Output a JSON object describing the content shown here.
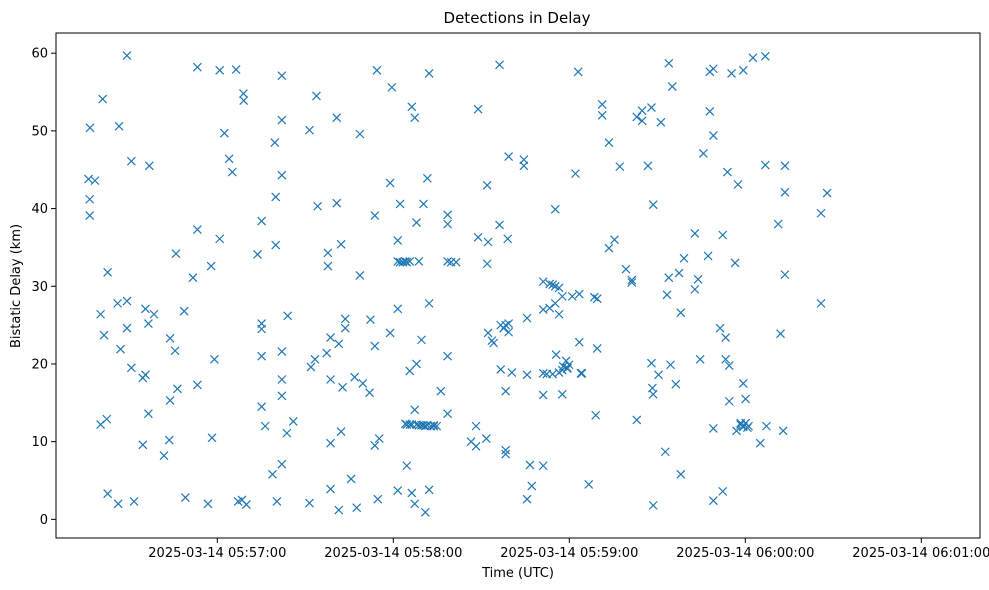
{
  "chart_data": {
    "type": "scatter",
    "title": "Detections in Delay",
    "xlabel": "Time (UTC)",
    "ylabel": "Bistatic Delay (km)",
    "marker": "x",
    "color": "#1f77b4",
    "grid": false,
    "x_unit": "seconds",
    "x_tick_labels": [
      "2025-03-14 05:57:00",
      "2025-03-14 05:58:00",
      "2025-03-14 05:59:00",
      "2025-03-14 06:00:00",
      "2025-03-14 06:01:00"
    ],
    "x_tick_values": [
      60,
      120,
      180,
      240,
      300
    ],
    "xlim": [
      5,
      320
    ],
    "y_ticks": [
      0,
      10,
      20,
      30,
      40,
      50,
      60
    ],
    "ylim": [
      -2.4,
      62.6
    ],
    "points": [
      [
        16.1,
        43.8
      ],
      [
        16.5,
        41.2
      ],
      [
        16.5,
        39.1
      ],
      [
        16.6,
        50.4
      ],
      [
        18.3,
        43.6
      ],
      [
        20.2,
        12.2
      ],
      [
        20.2,
        26.4
      ],
      [
        20.9,
        54.1
      ],
      [
        21.4,
        23.7
      ],
      [
        22.3,
        12.9
      ],
      [
        22.6,
        31.8
      ],
      [
        22.6,
        3.3
      ],
      [
        26.0,
        27.8
      ],
      [
        26.2,
        2.0
      ],
      [
        26.5,
        50.6
      ],
      [
        27.0,
        21.9
      ],
      [
        29.2,
        59.7
      ],
      [
        29.2,
        28.1
      ],
      [
        29.2,
        24.6
      ],
      [
        30.7,
        19.5
      ],
      [
        30.7,
        46.1
      ],
      [
        31.6,
        2.3
      ],
      [
        34.6,
        9.6
      ],
      [
        34.6,
        18.2
      ],
      [
        35.5,
        18.6
      ],
      [
        35.5,
        27.1
      ],
      [
        36.5,
        25.2
      ],
      [
        36.5,
        13.6
      ],
      [
        36.8,
        45.5
      ],
      [
        38.4,
        26.4
      ],
      [
        41.8,
        8.2
      ],
      [
        43.6,
        10.2
      ],
      [
        43.9,
        15.3
      ],
      [
        43.9,
        23.3
      ],
      [
        45.6,
        21.7
      ],
      [
        45.9,
        34.2
      ],
      [
        46.4,
        16.8
      ],
      [
        48.7,
        26.8
      ],
      [
        49.1,
        2.8
      ],
      [
        51.7,
        31.1
      ],
      [
        53.2,
        17.3
      ],
      [
        53.2,
        37.3
      ],
      [
        53.2,
        58.2
      ],
      [
        56.8,
        2.0
      ],
      [
        57.9,
        32.6
      ],
      [
        58.2,
        10.5
      ],
      [
        59.0,
        20.6
      ],
      [
        60.8,
        57.8
      ],
      [
        60.8,
        36.1
      ],
      [
        62.4,
        49.7
      ],
      [
        64.0,
        46.4
      ],
      [
        65.1,
        44.7
      ],
      [
        66.4,
        57.9
      ],
      [
        67.1,
        2.3
      ],
      [
        68.4,
        2.5
      ],
      [
        68.9,
        54.8
      ],
      [
        69.0,
        53.9
      ],
      [
        69.9,
        1.9
      ],
      [
        73.7,
        34.1
      ],
      [
        75.1,
        38.4
      ],
      [
        75.1,
        25.2
      ],
      [
        75.1,
        24.5
      ],
      [
        75.1,
        21.0
      ],
      [
        75.1,
        14.5
      ],
      [
        76.3,
        12.0
      ],
      [
        78.8,
        5.8
      ],
      [
        79.6,
        48.5
      ],
      [
        79.9,
        35.3
      ],
      [
        79.9,
        41.5
      ],
      [
        80.3,
        2.3
      ],
      [
        82.0,
        57.1
      ],
      [
        82.0,
        51.4
      ],
      [
        82.0,
        44.3
      ],
      [
        82.0,
        21.6
      ],
      [
        82.0,
        18.0
      ],
      [
        82.0,
        15.9
      ],
      [
        82.0,
        7.1
      ],
      [
        83.7,
        11.1
      ],
      [
        84.0,
        26.2
      ],
      [
        85.9,
        12.6
      ],
      [
        91.4,
        2.1
      ],
      [
        91.4,
        50.1
      ],
      [
        91.9,
        19.6
      ],
      [
        93.3,
        20.6
      ],
      [
        93.8,
        54.5
      ],
      [
        94.2,
        40.3
      ],
      [
        97.3,
        21.4
      ],
      [
        97.7,
        34.3
      ],
      [
        97.7,
        32.6
      ],
      [
        98.6,
        18.0
      ],
      [
        98.6,
        3.9
      ],
      [
        98.6,
        9.8
      ],
      [
        98.6,
        23.4
      ],
      [
        100.7,
        40.7
      ],
      [
        100.7,
        51.7
      ],
      [
        101.4,
        1.2
      ],
      [
        101.4,
        22.6
      ],
      [
        102.2,
        11.3
      ],
      [
        102.2,
        35.4
      ],
      [
        102.7,
        17.0
      ],
      [
        103.6,
        25.8
      ],
      [
        103.6,
        24.6
      ],
      [
        105.6,
        5.2
      ],
      [
        106.8,
        18.3
      ],
      [
        107.5,
        1.5
      ],
      [
        108.6,
        49.6
      ],
      [
        108.6,
        31.4
      ],
      [
        109.6,
        17.5
      ],
      [
        111.9,
        16.3
      ],
      [
        112.2,
        25.7
      ],
      [
        113.7,
        39.1
      ],
      [
        113.7,
        22.3
      ],
      [
        113.7,
        9.5
      ],
      [
        114.4,
        57.8
      ],
      [
        114.7,
        2.6
      ],
      [
        115.2,
        10.4
      ],
      [
        118.9,
        24.0
      ],
      [
        118.9,
        43.3
      ],
      [
        119.5,
        55.6
      ],
      [
        121.5,
        35.9
      ],
      [
        121.5,
        33.2
      ],
      [
        121.5,
        27.1
      ],
      [
        121.5,
        3.7
      ],
      [
        122.3,
        40.6
      ],
      [
        122.3,
        33.1
      ],
      [
        123.2,
        33.1
      ],
      [
        124.1,
        33.2
      ],
      [
        124.1,
        12.3
      ],
      [
        124.6,
        33.1
      ],
      [
        124.6,
        6.9
      ],
      [
        124.6,
        12.2
      ],
      [
        125.6,
        33.2
      ],
      [
        125.6,
        12.2
      ],
      [
        125.6,
        19.1
      ],
      [
        126.3,
        12.2
      ],
      [
        126.3,
        53.1
      ],
      [
        126.3,
        3.4
      ],
      [
        127.3,
        51.7
      ],
      [
        127.3,
        2.0
      ],
      [
        127.3,
        14.1
      ],
      [
        127.9,
        12.2
      ],
      [
        127.9,
        38.2
      ],
      [
        127.9,
        20.0
      ],
      [
        128.7,
        33.2
      ],
      [
        128.7,
        12.1
      ],
      [
        129.6,
        12.1
      ],
      [
        129.6,
        23.1
      ],
      [
        130.3,
        40.6
      ],
      [
        130.3,
        12.1
      ],
      [
        130.9,
        12.0
      ],
      [
        130.9,
        0.9
      ],
      [
        131.6,
        12.1
      ],
      [
        131.6,
        43.9
      ],
      [
        132.2,
        57.4
      ],
      [
        132.2,
        27.8
      ],
      [
        132.2,
        3.8
      ],
      [
        132.8,
        12.0
      ],
      [
        133.8,
        12.0
      ],
      [
        133.8,
        12.1
      ],
      [
        134.8,
        12.0
      ],
      [
        136.2,
        16.5
      ],
      [
        138.5,
        38.0
      ],
      [
        138.5,
        33.2
      ],
      [
        138.5,
        13.6
      ],
      [
        138.5,
        39.2
      ],
      [
        138.5,
        21.0
      ],
      [
        139.7,
        33.1
      ],
      [
        141.4,
        33.1
      ],
      [
        146.5,
        10.0
      ],
      [
        148.2,
        9.4
      ],
      [
        148.2,
        12.0
      ],
      [
        148.9,
        52.8
      ],
      [
        148.9,
        36.3
      ],
      [
        151.7,
        10.4
      ],
      [
        152.0,
        32.9
      ],
      [
        152.0,
        43.0
      ],
      [
        152.3,
        35.7
      ],
      [
        152.3,
        24.0
      ],
      [
        153.6,
        23.0
      ],
      [
        154.2,
        22.7
      ],
      [
        156.2,
        58.5
      ],
      [
        156.2,
        37.9
      ],
      [
        156.6,
        25.0
      ],
      [
        156.6,
        19.3
      ],
      [
        157.6,
        24.6
      ],
      [
        158.3,
        25.0
      ],
      [
        158.3,
        8.9
      ],
      [
        158.3,
        8.4
      ],
      [
        158.3,
        16.5
      ],
      [
        159.0,
        36.1
      ],
      [
        159.3,
        46.7
      ],
      [
        159.3,
        24.1
      ],
      [
        159.3,
        25.2
      ],
      [
        160.4,
        18.9
      ],
      [
        164.5,
        45.5
      ],
      [
        164.5,
        46.3
      ],
      [
        165.6,
        25.9
      ],
      [
        165.6,
        18.6
      ],
      [
        165.6,
        2.6
      ],
      [
        166.6,
        7.0
      ],
      [
        167.2,
        4.3
      ],
      [
        171.1,
        30.6
      ],
      [
        171.1,
        27.0
      ],
      [
        171.1,
        16.0
      ],
      [
        171.1,
        18.8
      ],
      [
        171.1,
        6.9
      ],
      [
        172.3,
        18.7
      ],
      [
        173.3,
        27.2
      ],
      [
        173.3,
        30.3
      ],
      [
        174.3,
        18.7
      ],
      [
        174.3,
        30.2
      ],
      [
        175.2,
        30.0
      ],
      [
        175.2,
        39.9
      ],
      [
        175.2,
        27.8
      ],
      [
        175.5,
        21.2
      ],
      [
        176.5,
        29.8
      ],
      [
        176.5,
        26.4
      ],
      [
        176.5,
        18.9
      ],
      [
        177.6,
        28.7
      ],
      [
        177.6,
        16.1
      ],
      [
        177.6,
        19.2
      ],
      [
        177.9,
        19.7
      ],
      [
        178.9,
        20.4
      ],
      [
        179.3,
        19.5
      ],
      [
        179.3,
        19.4
      ],
      [
        179.9,
        19.9
      ],
      [
        181.0,
        28.7
      ],
      [
        182.1,
        44.5
      ],
      [
        183.0,
        57.6
      ],
      [
        183.4,
        29.0
      ],
      [
        183.4,
        22.8
      ],
      [
        184.0,
        18.8
      ],
      [
        184.0,
        18.8
      ],
      [
        184.3,
        18.8
      ],
      [
        186.6,
        4.5
      ],
      [
        188.5,
        28.6
      ],
      [
        189.0,
        13.4
      ],
      [
        189.5,
        28.4
      ],
      [
        189.5,
        22.0
      ],
      [
        191.2,
        53.4
      ],
      [
        191.2,
        52.0
      ],
      [
        193.5,
        48.5
      ],
      [
        193.5,
        34.9
      ],
      [
        195.4,
        36.0
      ],
      [
        197.2,
        45.4
      ],
      [
        199.3,
        32.2
      ],
      [
        201.3,
        30.8
      ],
      [
        201.3,
        30.5
      ],
      [
        203.0,
        51.8
      ],
      [
        203.0,
        12.8
      ],
      [
        204.8,
        52.6
      ],
      [
        204.8,
        51.3
      ],
      [
        206.8,
        45.5
      ],
      [
        208.0,
        53.0
      ],
      [
        208.0,
        20.1
      ],
      [
        208.3,
        16.9
      ],
      [
        208.6,
        40.5
      ],
      [
        208.6,
        16.1
      ],
      [
        208.6,
        1.8
      ],
      [
        210.4,
        18.6
      ],
      [
        211.2,
        51.1
      ],
      [
        212.7,
        8.7
      ],
      [
        213.3,
        28.9
      ],
      [
        213.9,
        58.7
      ],
      [
        213.9,
        31.1
      ],
      [
        214.5,
        19.9
      ],
      [
        215.1,
        55.7
      ],
      [
        216.3,
        17.4
      ],
      [
        217.4,
        31.7
      ],
      [
        218.0,
        26.6
      ],
      [
        218.0,
        5.8
      ],
      [
        219.1,
        33.6
      ],
      [
        222.8,
        29.6
      ],
      [
        222.8,
        36.8
      ],
      [
        223.9,
        30.9
      ],
      [
        224.6,
        20.6
      ],
      [
        225.7,
        47.1
      ],
      [
        227.3,
        33.9
      ],
      [
        227.9,
        57.6
      ],
      [
        227.9,
        52.5
      ],
      [
        229.1,
        58.0
      ],
      [
        229.1,
        49.4
      ],
      [
        229.1,
        11.7
      ],
      [
        229.1,
        2.4
      ],
      [
        231.4,
        24.6
      ],
      [
        232.3,
        3.6
      ],
      [
        232.3,
        36.6
      ],
      [
        233.3,
        23.4
      ],
      [
        233.3,
        20.6
      ],
      [
        233.9,
        44.7
      ],
      [
        234.5,
        15.2
      ],
      [
        234.5,
        19.8
      ],
      [
        235.3,
        57.4
      ],
      [
        236.5,
        33.0
      ],
      [
        237.0,
        11.4
      ],
      [
        237.5,
        43.1
      ],
      [
        238.4,
        12.4
      ],
      [
        238.4,
        12.2
      ],
      [
        239.3,
        17.5
      ],
      [
        239.3,
        11.9
      ],
      [
        239.3,
        12.0
      ],
      [
        239.3,
        57.8
      ],
      [
        240.1,
        12.4
      ],
      [
        240.1,
        15.5
      ],
      [
        240.7,
        11.8
      ],
      [
        241.1,
        12.0
      ],
      [
        242.6,
        59.4
      ],
      [
        245.1,
        9.8
      ],
      [
        246.8,
        59.6
      ],
      [
        246.8,
        45.6
      ],
      [
        247.2,
        12.0
      ],
      [
        251.2,
        38.0
      ],
      [
        252.0,
        23.9
      ],
      [
        252.9,
        11.4
      ],
      [
        253.5,
        31.5
      ],
      [
        253.5,
        42.1
      ],
      [
        253.5,
        45.5
      ],
      [
        265.8,
        27.8
      ],
      [
        265.8,
        39.4
      ],
      [
        267.9,
        42.0
      ]
    ]
  }
}
